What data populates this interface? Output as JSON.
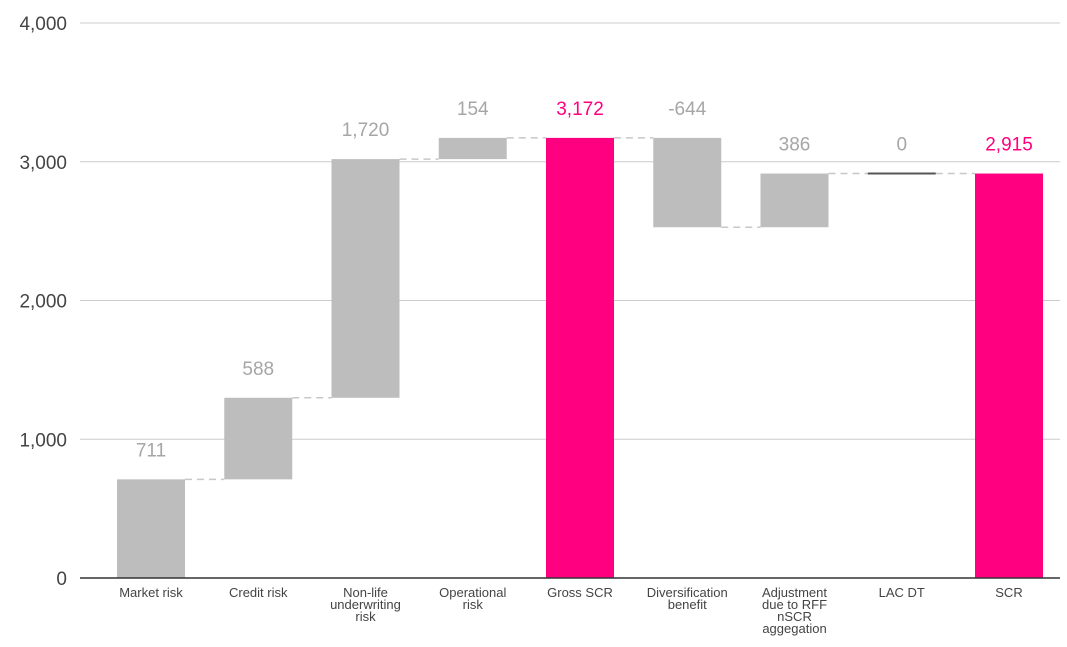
{
  "chart_data": {
    "type": "waterfall",
    "title": "",
    "xlabel": "",
    "ylabel": "",
    "ylim": [
      0,
      4000
    ],
    "yticks": [
      "0",
      "1,000",
      "2,000",
      "3,000",
      "4,000"
    ],
    "ytick_values": [
      0,
      1000,
      2000,
      3000,
      4000
    ],
    "grid": true,
    "legend": "none",
    "categories": [
      [
        "Market risk"
      ],
      [
        "Credit risk"
      ],
      [
        "Non-life",
        "underwriting",
        "risk"
      ],
      [
        "Operational",
        "risk"
      ],
      [
        "Gross SCR"
      ],
      [
        "Diversification",
        "benefit"
      ],
      [
        "Adjustment",
        "due to RFF",
        "nSCR",
        "aggegation"
      ],
      [
        "LAC DT"
      ],
      [
        "SCR"
      ]
    ],
    "steps": [
      {
        "label": "711",
        "start": 0,
        "end": 711,
        "kind": "delta"
      },
      {
        "label": "588",
        "start": 711,
        "end": 1299,
        "kind": "delta"
      },
      {
        "label": "1,720",
        "start": 1299,
        "end": 3019,
        "kind": "delta"
      },
      {
        "label": "154",
        "start": 3019,
        "end": 3172,
        "kind": "delta"
      },
      {
        "label": "3,172",
        "start": 0,
        "end": 3172,
        "kind": "total"
      },
      {
        "label": "-644",
        "start": 3172,
        "end": 2528,
        "kind": "delta"
      },
      {
        "label": "386",
        "start": 2528,
        "end": 2915,
        "kind": "delta"
      },
      {
        "label": "0",
        "start": 2915,
        "end": 2915,
        "kind": "delta"
      },
      {
        "label": "2,915",
        "start": 0,
        "end": 2915,
        "kind": "total"
      }
    ],
    "colors": {
      "delta": "#bdbdbd",
      "total": "#ff0080",
      "delta_label": "#a6a6a6",
      "total_label": "#ff0080",
      "grid": "#cccccc",
      "axis": "#333333",
      "connector": "#c8c8c8",
      "zero_bar": "#555555"
    }
  }
}
